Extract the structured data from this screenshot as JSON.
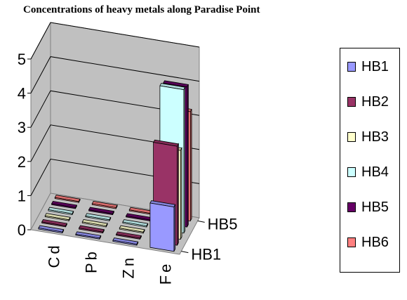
{
  "chart_data": {
    "type": "bar",
    "title": "Concentrations of heavy metals along Paradise Point",
    "categories": [
      "Cd",
      "Pb",
      "Zn",
      "Fe"
    ],
    "yticks": [
      "0",
      "1",
      "2",
      "3",
      "4",
      "5"
    ],
    "ylim": [
      0,
      5
    ],
    "depth_ticks": [
      "HB1",
      "HB5"
    ],
    "grid": true,
    "legend_position": "right",
    "series": [
      {
        "name": "HB1",
        "color": "#9999ff",
        "values": [
          0.01,
          0.01,
          0.01,
          1.3
        ]
      },
      {
        "name": "HB2",
        "color": "#993366",
        "values": [
          0.01,
          0.01,
          0.01,
          2.9
        ]
      },
      {
        "name": "HB3",
        "color": "#ffffcc",
        "values": [
          0.01,
          0.01,
          0.01,
          2.6
        ]
      },
      {
        "name": "HB4",
        "color": "#ccffff",
        "values": [
          0.01,
          0.01,
          0.01,
          4.2
        ]
      },
      {
        "name": "HB5",
        "color": "#660066",
        "values": [
          0.01,
          0.01,
          0.01,
          4.1
        ]
      },
      {
        "name": "HB6",
        "color": "#ff8080",
        "values": [
          0.01,
          0.01,
          0.01,
          3.2
        ]
      }
    ]
  }
}
